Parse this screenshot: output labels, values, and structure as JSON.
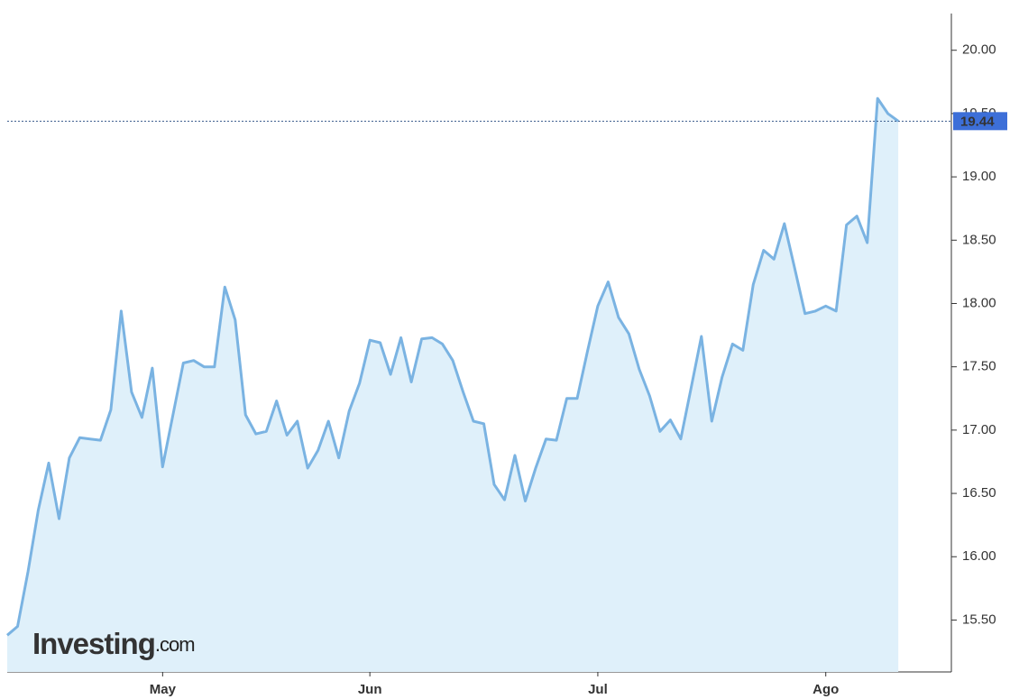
{
  "chart_data": {
    "type": "area",
    "categories": [
      null,
      null,
      null,
      null,
      null,
      null,
      null,
      null,
      null,
      null,
      null,
      null,
      null,
      null,
      null,
      "May",
      null,
      null,
      null,
      null,
      null,
      null,
      null,
      null,
      null,
      null,
      null,
      null,
      null,
      null,
      null,
      null,
      null,
      null,
      null,
      "Jun",
      null,
      null,
      null,
      null,
      null,
      null,
      null,
      null,
      null,
      null,
      null,
      null,
      null,
      null,
      null,
      null,
      null,
      null,
      null,
      null,
      null,
      "Jul",
      null,
      null,
      null,
      null,
      null,
      null,
      null,
      null,
      null,
      null,
      null,
      null,
      null,
      null,
      null,
      null,
      null,
      null,
      null,
      null,
      null,
      "Ago",
      null,
      null,
      null,
      null,
      null,
      null,
      null
    ],
    "values": [
      15.38,
      15.45,
      15.88,
      16.37,
      16.74,
      16.3,
      16.78,
      16.94,
      16.93,
      16.92,
      17.16,
      17.94,
      17.3,
      17.1,
      17.49,
      16.71,
      17.12,
      17.53,
      17.55,
      17.5,
      17.5,
      18.13,
      17.87,
      17.12,
      16.97,
      16.99,
      17.23,
      16.96,
      17.07,
      16.7,
      16.84,
      17.07,
      16.78,
      17.15,
      17.37,
      17.71,
      17.69,
      17.44,
      17.73,
      17.38,
      17.72,
      17.73,
      17.68,
      17.55,
      17.3,
      17.07,
      17.05,
      16.57,
      16.45,
      16.8,
      16.44,
      16.7,
      16.93,
      16.92,
      17.25,
      17.25,
      17.62,
      17.98,
      18.17,
      17.89,
      17.76,
      17.48,
      17.27,
      16.99,
      17.08,
      16.93,
      17.33,
      17.74,
      17.07,
      17.42,
      17.68,
      17.63,
      18.15,
      18.42,
      18.35,
      18.63,
      18.28,
      17.92,
      17.94,
      17.98,
      17.94,
      18.62,
      18.69,
      18.48,
      19.62,
      19.5,
      19.44
    ],
    "color": "#7ab3e2",
    "fill": "#dff0fa",
    "ylim": [
      15.09,
      20.29
    ],
    "yticks": [
      {
        "value": 15.5,
        "label": "15.50"
      },
      {
        "value": 16,
        "label": "16.00"
      },
      {
        "value": 16.5,
        "label": "16.50"
      },
      {
        "value": 17,
        "label": "17.00"
      },
      {
        "value": 17.5,
        "label": "17.50"
      },
      {
        "value": 18,
        "label": "18.00"
      },
      {
        "value": 18.5,
        "label": "18.50"
      },
      {
        "value": 19,
        "label": "19.00"
      },
      {
        "value": 19.5,
        "label": "19.50"
      },
      {
        "value": 20,
        "label": "20.00"
      }
    ],
    "last_value": 19.44,
    "watermark": {
      "brand": "Investing",
      "suffix": ".com"
    }
  }
}
